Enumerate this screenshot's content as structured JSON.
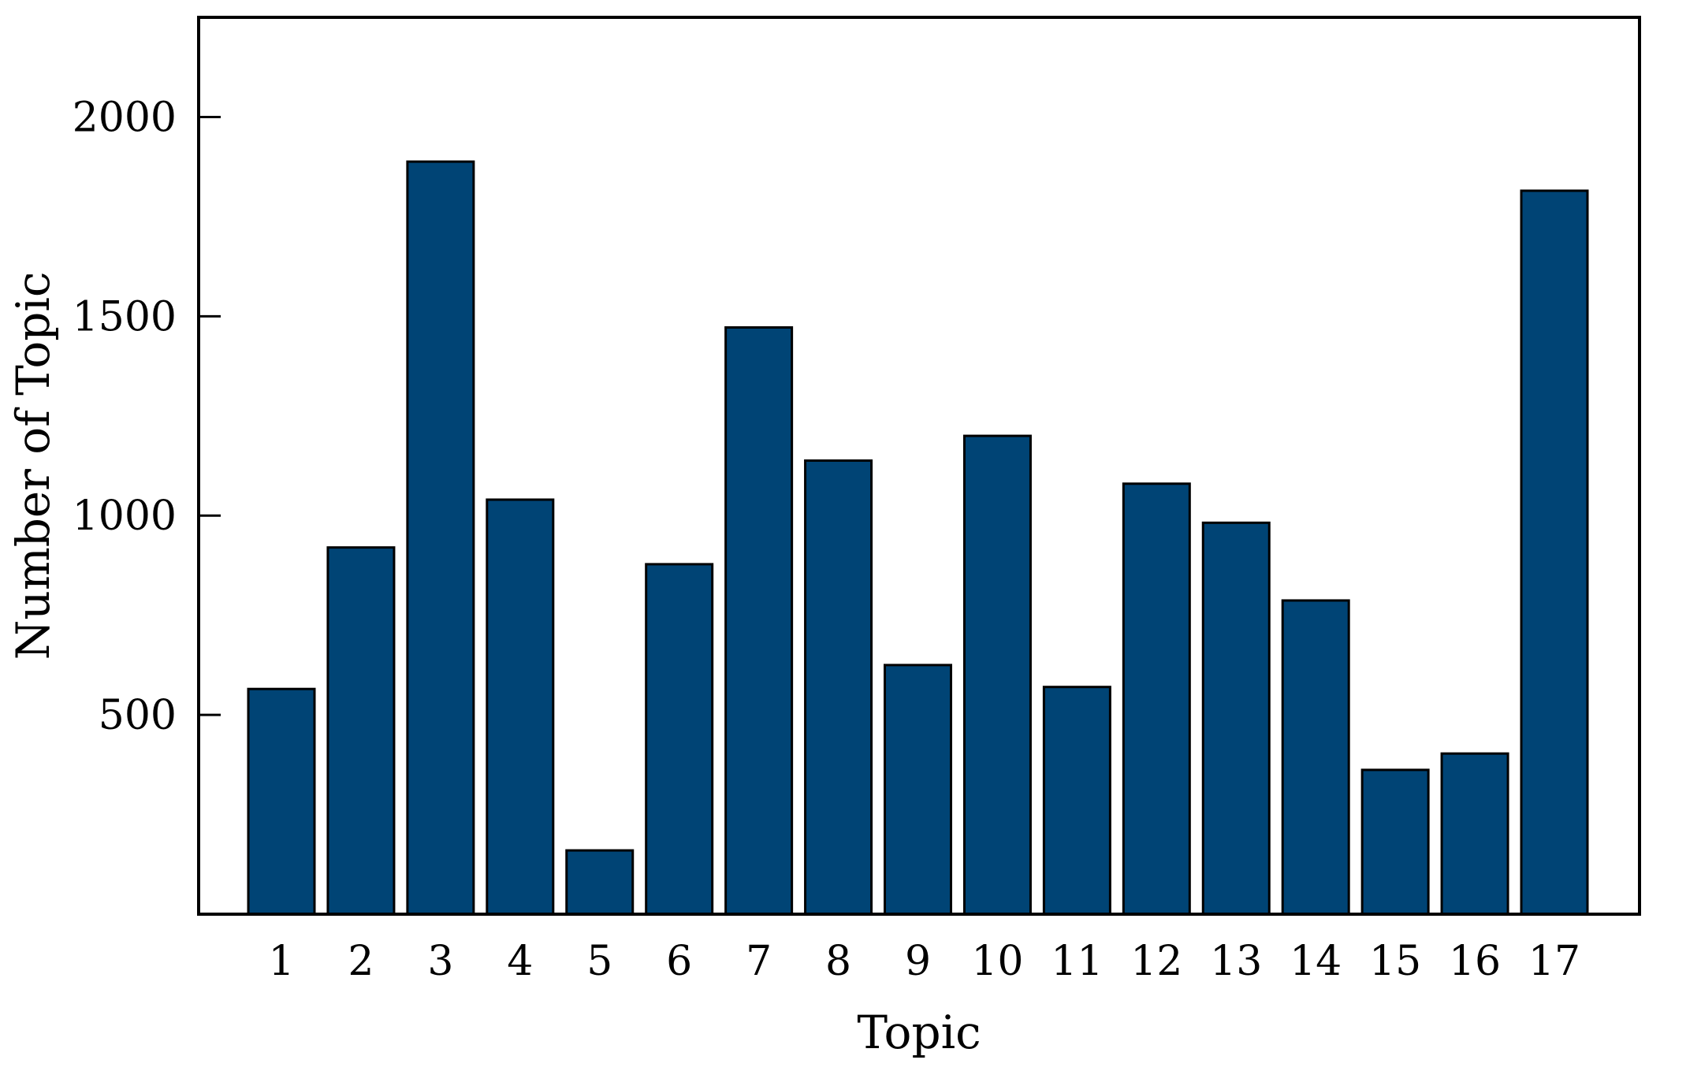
{
  "chart_data": {
    "type": "bar",
    "title": "",
    "xlabel": "Topic",
    "ylabel": "Number of Topic",
    "categories": [
      "1",
      "2",
      "3",
      "4",
      "5",
      "6",
      "7",
      "8",
      "9",
      "10",
      "11",
      "12",
      "13",
      "14",
      "15",
      "16",
      "17"
    ],
    "values": [
      565,
      920,
      1888,
      1040,
      160,
      878,
      1472,
      1138,
      625,
      1200,
      570,
      1080,
      982,
      787,
      362,
      403,
      1815
    ],
    "ylim": [
      0,
      2250
    ],
    "yticks": [
      500,
      1000,
      1500,
      2000
    ],
    "ytick_labels": [
      "500",
      "1000",
      "1500",
      "2000"
    ],
    "grid": false,
    "bar_color": "#004475"
  }
}
